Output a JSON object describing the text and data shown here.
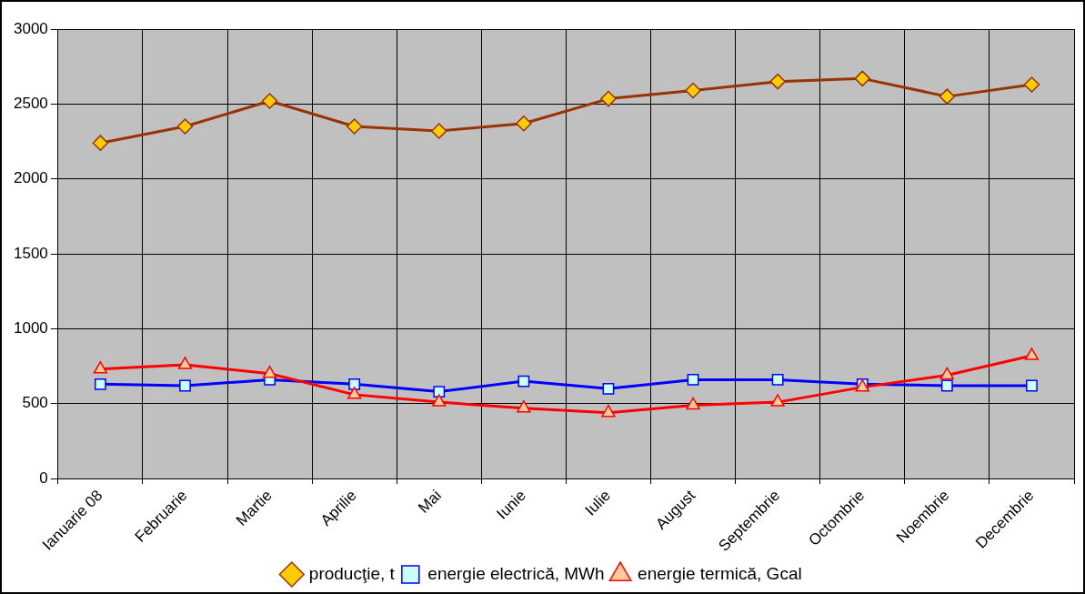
{
  "chart_data": {
    "type": "line",
    "categories": [
      "Ianuarie 08",
      "Februarie",
      "Martie",
      "Aprilie",
      "Mai",
      "Iunie",
      "Iulie",
      "August",
      "Septembrie",
      "Octombrie",
      "Noembrie",
      "Decembrie"
    ],
    "series": [
      {
        "name": "producţie, t",
        "color": "#993300",
        "marker": "diamond",
        "values": [
          2240,
          2350,
          2520,
          2350,
          2320,
          2370,
          2535,
          2590,
          2650,
          2670,
          2550,
          2630
        ]
      },
      {
        "name": "energie electrică, MWh",
        "color": "#0000ff",
        "marker": "square",
        "values": [
          630,
          620,
          660,
          630,
          580,
          650,
          600,
          660,
          660,
          630,
          620,
          620
        ]
      },
      {
        "name": "energie termică, Gcal",
        "color": "#ff0000",
        "marker": "triangle",
        "values": [
          730,
          760,
          700,
          560,
          510,
          470,
          440,
          490,
          510,
          610,
          690,
          820
        ]
      }
    ],
    "ylim": [
      0,
      3000
    ],
    "yticks": [
      0,
      500,
      1000,
      1500,
      2000,
      2500,
      3000
    ],
    "grid": true,
    "legend": "bottom"
  }
}
